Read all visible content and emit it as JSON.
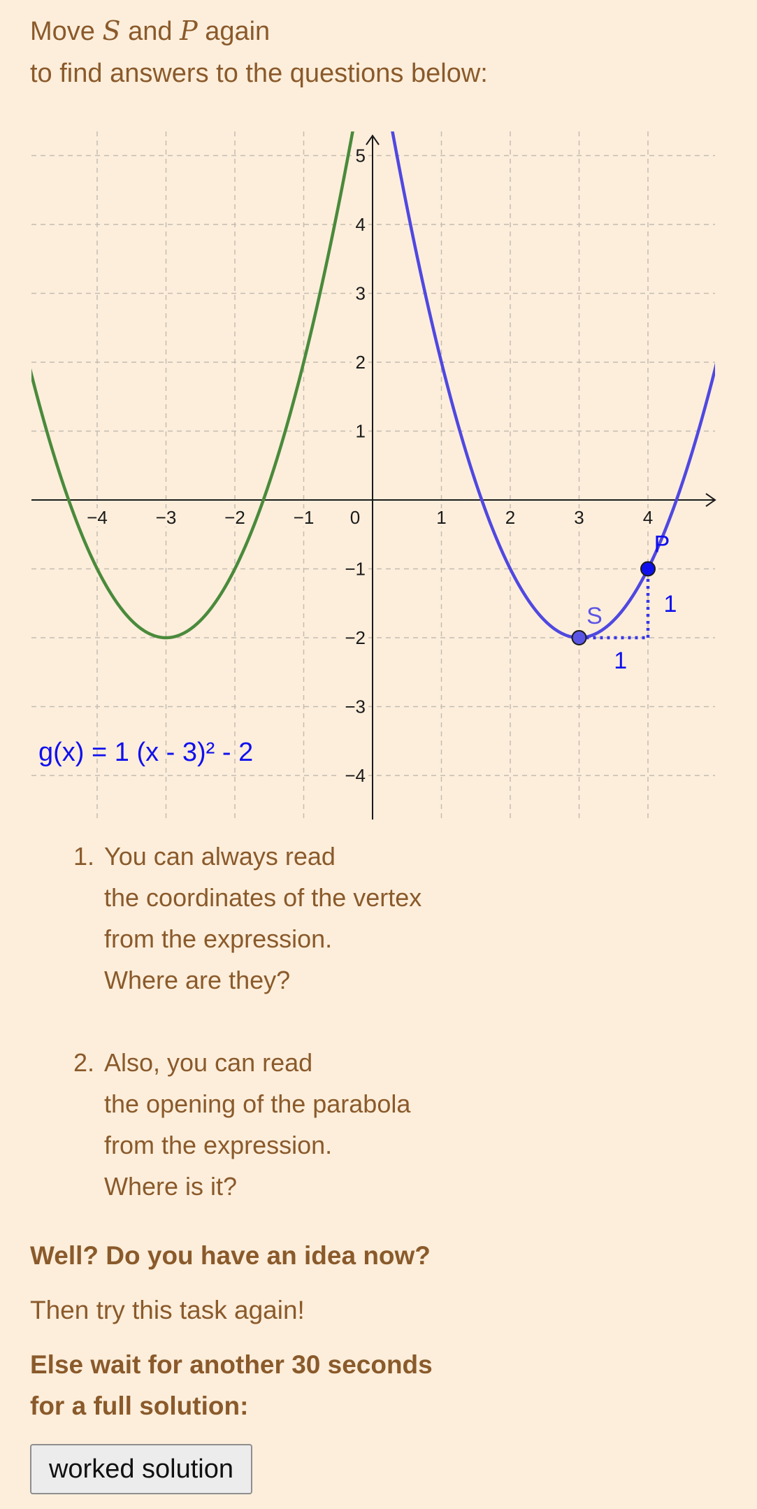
{
  "intro": {
    "word_move": "Move",
    "var_s": "S",
    "word_and": "and",
    "var_p": "P",
    "word_again": "again",
    "line2": "to find answers to the questions below:"
  },
  "chart_data": {
    "type": "line",
    "xlim": [
      -4.9,
      5.0
    ],
    "ylim": [
      -4.6,
      5.3
    ],
    "x_ticks": [
      -4,
      -3,
      -2,
      -1,
      1,
      2,
      3,
      4
    ],
    "x_tick_labels": [
      "−4",
      "−3",
      "−2",
      "−1",
      "1",
      "2",
      "3",
      "4"
    ],
    "y_ticks": [
      -4,
      -3,
      -2,
      -1,
      1,
      2,
      3,
      4,
      5
    ],
    "y_tick_labels": [
      "−4",
      "−3",
      "−2",
      "−1",
      "1",
      "2",
      "3",
      "4",
      "5"
    ],
    "origin_label": "0",
    "grid": true,
    "series": [
      {
        "color": "#4a8a3c",
        "a": 1,
        "h": -3,
        "k": -2
      },
      {
        "color": "#5048e0",
        "a": 1,
        "h": 3,
        "k": -2
      }
    ],
    "points": [
      {
        "label": "S",
        "x": 3,
        "y": -2,
        "fill": "#5b55e6",
        "label_color": "#5b55e6"
      },
      {
        "label": "P",
        "x": 4,
        "y": -1,
        "fill": "#1010ee",
        "label_color": "#1010ee"
      }
    ],
    "slope_triangle": {
      "color": "#3838e8",
      "run_label": "1",
      "rise_label": "1"
    },
    "expression": {
      "text": "g(x) = 1 (x - 3)² - 2",
      "color": "#1010ee"
    }
  },
  "questions": [
    {
      "number": "1.",
      "lines": [
        "You can always read",
        "the coordinates of the vertex",
        "from the expression.",
        "Where are they?"
      ]
    },
    {
      "number": "2.",
      "lines": [
        "Also, you can read",
        "the opening of the parabola",
        "from the expression.",
        "Where is it?"
      ]
    }
  ],
  "footer": {
    "idea": "Well? Do you have an idea now?",
    "try_again": "Then try this task again!",
    "wait_line1": "Else wait for another 30 seconds",
    "wait_line2": "for a full solution:"
  },
  "button": {
    "label": "worked solution"
  }
}
